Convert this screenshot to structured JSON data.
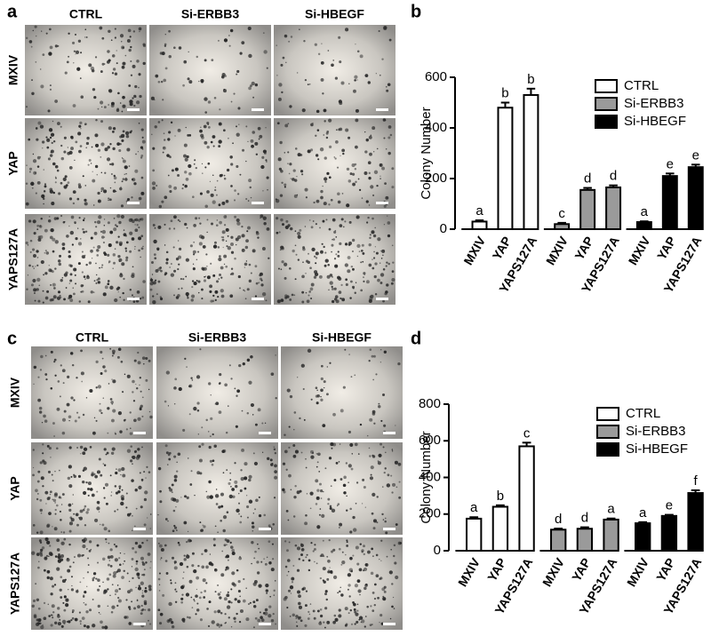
{
  "image_panels": [
    {
      "letter": "a",
      "columns": [
        "CTRL",
        "Si-ERBB3",
        "Si-HBEGF"
      ],
      "rows": [
        "MXIV",
        "YAP",
        "YAPS127A"
      ]
    },
    {
      "letter": "c",
      "columns": [
        "CTRL",
        "Si-ERBB3",
        "Si-HBEGF"
      ],
      "rows": [
        "MXIV",
        "YAP",
        "YAPS127A"
      ]
    }
  ],
  "chart_data": [
    {
      "type": "bar",
      "letter": "b",
      "y_label": "Colony Number",
      "categories": [
        "MXIV",
        "YAP",
        "YAPS127A"
      ],
      "series": [
        {
          "name": "CTRL",
          "color": "#ffffff",
          "values": [
            30,
            480,
            530
          ],
          "errors": [
            5,
            20,
            25
          ],
          "annotations": [
            "a",
            "b",
            "b"
          ]
        },
        {
          "name": "Si-ERBB3",
          "color": "#9a9a9a",
          "values": [
            20,
            155,
            165
          ],
          "errors": [
            5,
            8,
            8
          ],
          "annotations": [
            "c",
            "d",
            "d"
          ]
        },
        {
          "name": "Si-HBEGF",
          "color": "#000000",
          "values": [
            28,
            210,
            245
          ],
          "errors": [
            3,
            10,
            10
          ],
          "annotations": [
            "a",
            "e",
            "e"
          ]
        }
      ],
      "ylim": [
        0,
        600
      ],
      "yticks": [
        0,
        200,
        400,
        600
      ],
      "legend": "top-right"
    },
    {
      "type": "bar",
      "letter": "d",
      "y_label": "Colony Number",
      "categories": [
        "MXIV",
        "YAP",
        "YAPS127A"
      ],
      "series": [
        {
          "name": "CTRL",
          "color": "#ffffff",
          "values": [
            175,
            240,
            570
          ],
          "errors": [
            8,
            8,
            20
          ],
          "annotations": [
            "a",
            "b",
            "c"
          ]
        },
        {
          "name": "Si-ERBB3",
          "color": "#9a9a9a",
          "values": [
            115,
            120,
            170
          ],
          "errors": [
            6,
            8,
            6
          ],
          "annotations": [
            "d",
            "d",
            "a"
          ]
        },
        {
          "name": "Si-HBEGF",
          "color": "#000000",
          "values": [
            150,
            190,
            315
          ],
          "errors": [
            6,
            6,
            15
          ],
          "annotations": [
            "a",
            "e",
            "f"
          ]
        }
      ],
      "ylim": [
        0,
        800
      ],
      "yticks": [
        0,
        200,
        400,
        600,
        800
      ],
      "legend": "top-right"
    }
  ]
}
